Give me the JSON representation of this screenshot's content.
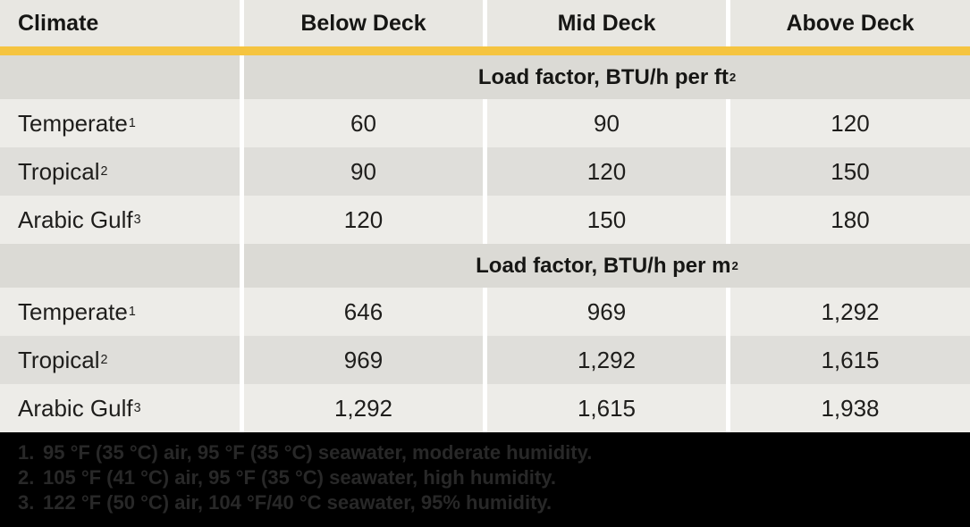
{
  "colors": {
    "accent_gold": "#f5c440",
    "header_bg": "#e8e7e2",
    "section_bg": "#dbdad5",
    "row_light_bg": "#edece8",
    "row_dark_bg": "#dfdeda",
    "footer_bg": "#000000",
    "footer_text": "#282828"
  },
  "table": {
    "columns": [
      "Climate",
      "Below Deck",
      "Mid Deck",
      "Above Deck"
    ],
    "sections": [
      {
        "title": "Load factor, BTU/h per ft",
        "title_sup": "2",
        "rows": [
          {
            "label": "Temperate",
            "sup": "1",
            "values": [
              "60",
              "90",
              "120"
            ]
          },
          {
            "label": "Tropical",
            "sup": "2",
            "values": [
              "90",
              "120",
              "150"
            ]
          },
          {
            "label": "Arabic Gulf",
            "sup": "3",
            "values": [
              "120",
              "150",
              "180"
            ]
          }
        ]
      },
      {
        "title": "Load factor, BTU/h per m",
        "title_sup": "2",
        "rows": [
          {
            "label": "Temperate",
            "sup": "1",
            "values": [
              "646",
              "969",
              "1,292"
            ]
          },
          {
            "label": "Tropical",
            "sup": "2",
            "values": [
              "969",
              "1,292",
              "1,615"
            ]
          },
          {
            "label": "Arabic Gulf",
            "sup": "3",
            "values": [
              "1,292",
              "1,615",
              "1,938"
            ]
          }
        ]
      }
    ]
  },
  "footnotes": [
    {
      "num": "1.",
      "text": "95 °F (35 °C) air, 95 °F (35 °C) seawater, moderate humidity."
    },
    {
      "num": "2.",
      "text": "105 °F (41 °C) air, 95 °F (35 °C) seawater, high humidity."
    },
    {
      "num": "3.",
      "text": "122 °F (50 °C) air, 104 °F/40 °C seawater, 95% humidity."
    }
  ]
}
